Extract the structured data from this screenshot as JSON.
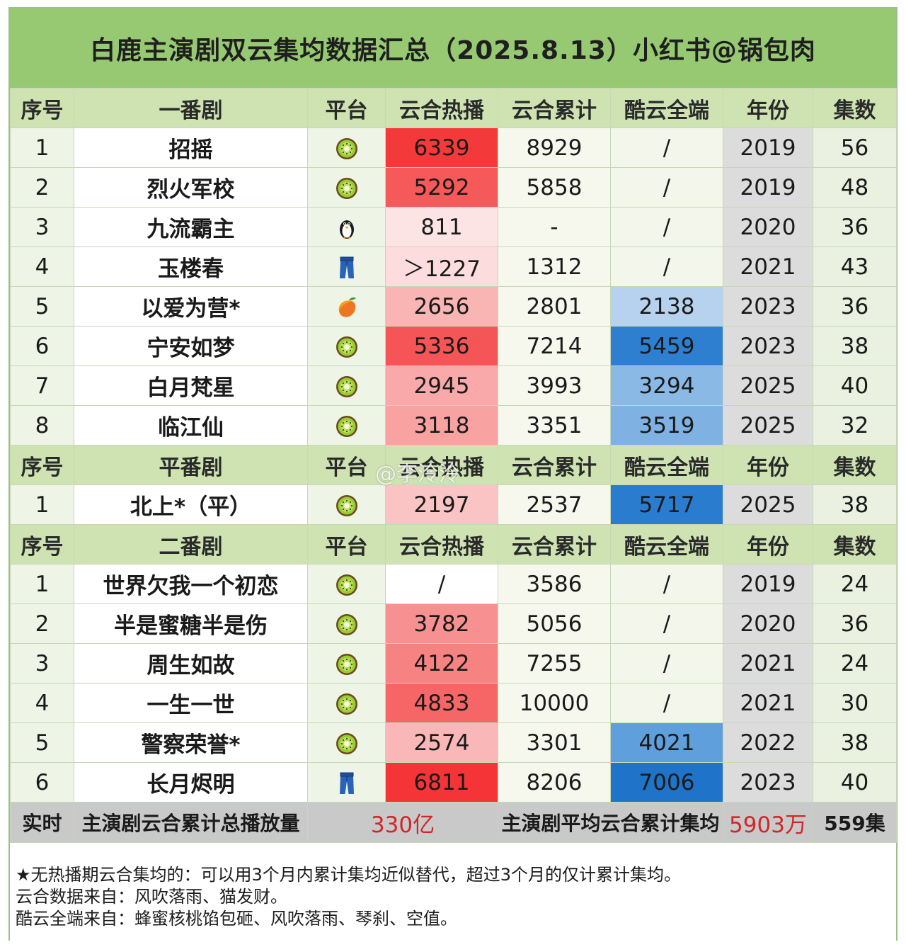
{
  "title": "白鹿主演剧双云集均数据汇总（2025.8.13）小红书@锅包肉",
  "watermark": "@李泠泠",
  "sections": [
    {
      "header": [
        "序号",
        "一番剧",
        "平台",
        "云合热播",
        "云合累计",
        "酷云全端",
        "年份",
        "集数"
      ],
      "rows": [
        {
          "idx": "1",
          "name": "招摇",
          "platform": "kiwi-icon",
          "hot": "6339",
          "hot_color": "#f4393b",
          "cum": "8929",
          "kuyun": "/",
          "kuyun_color": "",
          "year": "2019",
          "eps": "56"
        },
        {
          "idx": "2",
          "name": "烈火军校",
          "platform": "kiwi-icon",
          "hot": "5292",
          "hot_color": "#f6595a",
          "cum": "5858",
          "kuyun": "/",
          "kuyun_color": "",
          "year": "2019",
          "eps": "48"
        },
        {
          "idx": "3",
          "name": "九流霸主",
          "platform": "penguin-icon",
          "hot": "811",
          "hot_color": "#fde4e4",
          "cum": "-",
          "kuyun": "/",
          "kuyun_color": "",
          "year": "2020",
          "eps": "36"
        },
        {
          "idx": "4",
          "name": "玉楼春",
          "platform": "jeans-icon",
          "hot": "＞1227",
          "hot_color": "#fcdcdc",
          "cum": "1312",
          "kuyun": "/",
          "kuyun_color": "",
          "year": "2021",
          "eps": "43"
        },
        {
          "idx": "5",
          "name": "以爱为营*",
          "platform": "mango-icon",
          "hot": "2656",
          "hot_color": "#f9b4b4",
          "cum": "2801",
          "kuyun": "2138",
          "kuyun_color": "#b7d2ee",
          "year": "2023",
          "eps": "36"
        },
        {
          "idx": "6",
          "name": "宁安如梦",
          "platform": "kiwi-icon",
          "hot": "5336",
          "hot_color": "#f55556",
          "cum": "7214",
          "kuyun": "5459",
          "kuyun_color": "#2e7fd0",
          "year": "2023",
          "eps": "38"
        },
        {
          "idx": "7",
          "name": "白月梵星",
          "platform": "kiwi-icon",
          "hot": "2945",
          "hot_color": "#f9a9a9",
          "cum": "3993",
          "kuyun": "3294",
          "kuyun_color": "#8ab9e6",
          "year": "2025",
          "eps": "40"
        },
        {
          "idx": "8",
          "name": "临江仙",
          "platform": "kiwi-icon",
          "hot": "3118",
          "hot_color": "#f8a2a2",
          "cum": "3351",
          "kuyun": "3519",
          "kuyun_color": "#7fb2e3",
          "year": "2025",
          "eps": "32"
        }
      ]
    },
    {
      "header": [
        "序号",
        "平番剧",
        "平台",
        "云合热播",
        "云合累计",
        "酷云全端",
        "年份",
        "集数"
      ],
      "rows": [
        {
          "idx": "1",
          "name": "北上*（平）",
          "platform": "kiwi-icon",
          "hot": "2197",
          "hot_color": "#fbc4c4",
          "cum": "2537",
          "kuyun": "5717",
          "kuyun_color": "#2a7ccf",
          "year": "2025",
          "eps": "38"
        }
      ]
    },
    {
      "header": [
        "序号",
        "二番剧",
        "平台",
        "云合热播",
        "云合累计",
        "酷云全端",
        "年份",
        "集数"
      ],
      "rows": [
        {
          "idx": "1",
          "name": "世界欠我一个初恋",
          "platform": "kiwi-icon",
          "hot": "/",
          "hot_color": "",
          "cum": "3586",
          "kuyun": "/",
          "kuyun_color": "",
          "year": "2019",
          "eps": "24"
        },
        {
          "idx": "2",
          "name": "半是蜜糖半是伤",
          "platform": "kiwi-icon",
          "hot": "3782",
          "hot_color": "#f79090",
          "cum": "5056",
          "kuyun": "/",
          "kuyun_color": "",
          "year": "2020",
          "eps": "36"
        },
        {
          "idx": "3",
          "name": "周生如故",
          "platform": "kiwi-icon",
          "hot": "4122",
          "hot_color": "#f78282",
          "cum": "7255",
          "kuyun": "/",
          "kuyun_color": "",
          "year": "2021",
          "eps": "24"
        },
        {
          "idx": "4",
          "name": "一生一世",
          "platform": "kiwi-icon",
          "hot": "4833",
          "hot_color": "#f66666",
          "cum": "10000",
          "kuyun": "/",
          "kuyun_color": "",
          "year": "2021",
          "eps": "30"
        },
        {
          "idx": "5",
          "name": "警察荣誉*",
          "platform": "kiwi-icon",
          "hot": "2574",
          "hot_color": "#f9b7b7",
          "cum": "3301",
          "kuyun": "4021",
          "kuyun_color": "#5fa0dc",
          "year": "2022",
          "eps": "38"
        },
        {
          "idx": "6",
          "name": "长月烬明",
          "platform": "jeans-icon",
          "hot": "6811",
          "hot_color": "#f43436",
          "cum": "8206",
          "kuyun": "7006",
          "kuyun_color": "#1f73c8",
          "year": "2023",
          "eps": "40"
        }
      ]
    }
  ],
  "total": {
    "label": "实时",
    "sum_label": "主演剧云合累计总播放量",
    "sum_value": "330亿",
    "avg_label": "主演剧平均云合累计集均",
    "avg_value": "5903万",
    "eps_total": "559集"
  },
  "notes": [
    "★无热播期云合集均的：可以用3个月内累计集均近似替代，超过3个月的仅计累计集均。",
    "云合数据来自：风吹落雨、猫发财。",
    "酷云全端来自：蜂蜜核桃馅包砸、风吹落雨、琴刹、空值。"
  ]
}
